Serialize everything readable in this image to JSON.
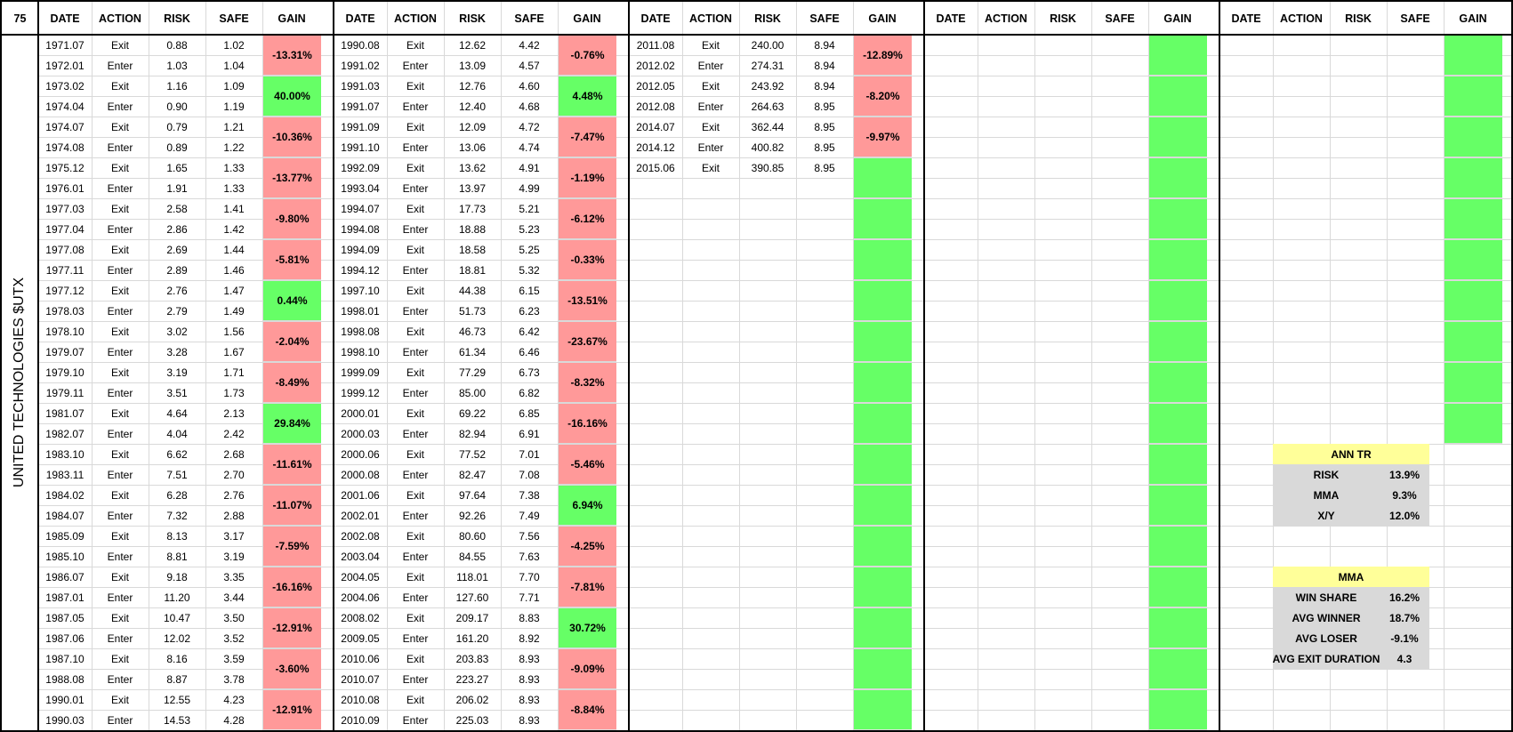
{
  "corner_label": "75",
  "company_label": "UNITED TECHNOLOGIES $UTX",
  "headers": [
    "DATE",
    "ACTION",
    "RISK",
    "SAFE",
    "GAIN"
  ],
  "colors": {
    "loss": "#ff9999",
    "gain": "#66ff66",
    "highlight": "#ffff99",
    "summary": "#d9d9d9",
    "grid": "#d9d9d9",
    "border": "#000000"
  },
  "blocks": [
    {
      "rows": [
        [
          "1971.07",
          "Exit",
          "0.88",
          "1.02"
        ],
        [
          "1972.01",
          "Enter",
          "1.03",
          "1.04"
        ],
        [
          "1973.02",
          "Exit",
          "1.16",
          "1.09"
        ],
        [
          "1974.04",
          "Enter",
          "0.90",
          "1.19"
        ],
        [
          "1974.07",
          "Exit",
          "0.79",
          "1.21"
        ],
        [
          "1974.08",
          "Enter",
          "0.89",
          "1.22"
        ],
        [
          "1975.12",
          "Exit",
          "1.65",
          "1.33"
        ],
        [
          "1976.01",
          "Enter",
          "1.91",
          "1.33"
        ],
        [
          "1977.03",
          "Exit",
          "2.58",
          "1.41"
        ],
        [
          "1977.04",
          "Enter",
          "2.86",
          "1.42"
        ],
        [
          "1977.08",
          "Exit",
          "2.69",
          "1.44"
        ],
        [
          "1977.11",
          "Enter",
          "2.89",
          "1.46"
        ],
        [
          "1977.12",
          "Exit",
          "2.76",
          "1.47"
        ],
        [
          "1978.03",
          "Enter",
          "2.79",
          "1.49"
        ],
        [
          "1978.10",
          "Exit",
          "3.02",
          "1.56"
        ],
        [
          "1979.07",
          "Enter",
          "3.28",
          "1.67"
        ],
        [
          "1979.10",
          "Exit",
          "3.19",
          "1.71"
        ],
        [
          "1979.11",
          "Enter",
          "3.51",
          "1.73"
        ],
        [
          "1981.07",
          "Exit",
          "4.64",
          "2.13"
        ],
        [
          "1982.07",
          "Enter",
          "4.04",
          "2.42"
        ],
        [
          "1983.10",
          "Exit",
          "6.62",
          "2.68"
        ],
        [
          "1983.11",
          "Enter",
          "7.51",
          "2.70"
        ],
        [
          "1984.02",
          "Exit",
          "6.28",
          "2.76"
        ],
        [
          "1984.07",
          "Enter",
          "7.32",
          "2.88"
        ],
        [
          "1985.09",
          "Exit",
          "8.13",
          "3.17"
        ],
        [
          "1985.10",
          "Enter",
          "8.81",
          "3.19"
        ],
        [
          "1986.07",
          "Exit",
          "9.18",
          "3.35"
        ],
        [
          "1987.01",
          "Enter",
          "11.20",
          "3.44"
        ],
        [
          "1987.05",
          "Exit",
          "10.47",
          "3.50"
        ],
        [
          "1987.06",
          "Enter",
          "12.02",
          "3.52"
        ],
        [
          "1987.10",
          "Exit",
          "8.16",
          "3.59"
        ],
        [
          "1988.08",
          "Enter",
          "8.87",
          "3.78"
        ],
        [
          "1990.01",
          "Exit",
          "12.55",
          "4.23"
        ],
        [
          "1990.03",
          "Enter",
          "14.53",
          "4.28"
        ]
      ],
      "gains": [
        {
          "text": "-13.31%",
          "type": "loss"
        },
        {
          "text": "40.00%",
          "type": "gain"
        },
        {
          "text": "-10.36%",
          "type": "loss"
        },
        {
          "text": "-13.77%",
          "type": "loss"
        },
        {
          "text": "-9.80%",
          "type": "loss"
        },
        {
          "text": "-5.81%",
          "type": "loss"
        },
        {
          "text": "0.44%",
          "type": "gain"
        },
        {
          "text": "-2.04%",
          "type": "loss"
        },
        {
          "text": "-8.49%",
          "type": "loss"
        },
        {
          "text": "29.84%",
          "type": "gain"
        },
        {
          "text": "-11.61%",
          "type": "loss"
        },
        {
          "text": "-11.07%",
          "type": "loss"
        },
        {
          "text": "-7.59%",
          "type": "loss"
        },
        {
          "text": "-16.16%",
          "type": "loss"
        },
        {
          "text": "-12.91%",
          "type": "loss"
        },
        {
          "text": "-3.60%",
          "type": "loss"
        },
        {
          "text": "-12.91%",
          "type": "loss"
        }
      ]
    },
    {
      "rows": [
        [
          "1990.08",
          "Exit",
          "12.62",
          "4.42"
        ],
        [
          "1991.02",
          "Enter",
          "13.09",
          "4.57"
        ],
        [
          "1991.03",
          "Exit",
          "12.76",
          "4.60"
        ],
        [
          "1991.07",
          "Enter",
          "12.40",
          "4.68"
        ],
        [
          "1991.09",
          "Exit",
          "12.09",
          "4.72"
        ],
        [
          "1991.10",
          "Enter",
          "13.06",
          "4.74"
        ],
        [
          "1992.09",
          "Exit",
          "13.62",
          "4.91"
        ],
        [
          "1993.04",
          "Enter",
          "13.97",
          "4.99"
        ],
        [
          "1994.07",
          "Exit",
          "17.73",
          "5.21"
        ],
        [
          "1994.08",
          "Enter",
          "18.88",
          "5.23"
        ],
        [
          "1994.09",
          "Exit",
          "18.58",
          "5.25"
        ],
        [
          "1994.12",
          "Enter",
          "18.81",
          "5.32"
        ],
        [
          "1997.10",
          "Exit",
          "44.38",
          "6.15"
        ],
        [
          "1998.01",
          "Enter",
          "51.73",
          "6.23"
        ],
        [
          "1998.08",
          "Exit",
          "46.73",
          "6.42"
        ],
        [
          "1998.10",
          "Enter",
          "61.34",
          "6.46"
        ],
        [
          "1999.09",
          "Exit",
          "77.29",
          "6.73"
        ],
        [
          "1999.12",
          "Enter",
          "85.00",
          "6.82"
        ],
        [
          "2000.01",
          "Exit",
          "69.22",
          "6.85"
        ],
        [
          "2000.03",
          "Enter",
          "82.94",
          "6.91"
        ],
        [
          "2000.06",
          "Exit",
          "77.52",
          "7.01"
        ],
        [
          "2000.08",
          "Enter",
          "82.47",
          "7.08"
        ],
        [
          "2001.06",
          "Exit",
          "97.64",
          "7.38"
        ],
        [
          "2002.01",
          "Enter",
          "92.26",
          "7.49"
        ],
        [
          "2002.08",
          "Exit",
          "80.60",
          "7.56"
        ],
        [
          "2003.04",
          "Enter",
          "84.55",
          "7.63"
        ],
        [
          "2004.05",
          "Exit",
          "118.01",
          "7.70"
        ],
        [
          "2004.06",
          "Enter",
          "127.60",
          "7.71"
        ],
        [
          "2008.02",
          "Exit",
          "209.17",
          "8.83"
        ],
        [
          "2009.05",
          "Enter",
          "161.20",
          "8.92"
        ],
        [
          "2010.06",
          "Exit",
          "203.83",
          "8.93"
        ],
        [
          "2010.07",
          "Enter",
          "223.27",
          "8.93"
        ],
        [
          "2010.08",
          "Exit",
          "206.02",
          "8.93"
        ],
        [
          "2010.09",
          "Enter",
          "225.03",
          "8.93"
        ]
      ],
      "gains": [
        {
          "text": "-0.76%",
          "type": "loss"
        },
        {
          "text": "4.48%",
          "type": "gain"
        },
        {
          "text": "-7.47%",
          "type": "loss"
        },
        {
          "text": "-1.19%",
          "type": "loss"
        },
        {
          "text": "-6.12%",
          "type": "loss"
        },
        {
          "text": "-0.33%",
          "type": "loss"
        },
        {
          "text": "-13.51%",
          "type": "loss"
        },
        {
          "text": "-23.67%",
          "type": "loss"
        },
        {
          "text": "-8.32%",
          "type": "loss"
        },
        {
          "text": "-16.16%",
          "type": "loss"
        },
        {
          "text": "-5.46%",
          "type": "loss"
        },
        {
          "text": "6.94%",
          "type": "gain"
        },
        {
          "text": "-4.25%",
          "type": "loss"
        },
        {
          "text": "-7.81%",
          "type": "loss"
        },
        {
          "text": "30.72%",
          "type": "gain"
        },
        {
          "text": "-9.09%",
          "type": "loss"
        },
        {
          "text": "-8.84%",
          "type": "loss"
        }
      ]
    },
    {
      "rows": [
        [
          "2011.08",
          "Exit",
          "240.00",
          "8.94"
        ],
        [
          "2012.02",
          "Enter",
          "274.31",
          "8.94"
        ],
        [
          "2012.05",
          "Exit",
          "243.92",
          "8.94"
        ],
        [
          "2012.08",
          "Enter",
          "264.63",
          "8.95"
        ],
        [
          "2014.07",
          "Exit",
          "362.44",
          "8.95"
        ],
        [
          "2014.12",
          "Enter",
          "400.82",
          "8.95"
        ],
        [
          "2015.06",
          "Exit",
          "390.85",
          "8.95"
        ]
      ],
      "gains": [
        {
          "text": "-12.89%",
          "type": "loss"
        },
        {
          "text": "-8.20%",
          "type": "loss"
        },
        {
          "text": "-9.97%",
          "type": "loss"
        },
        {
          "text": "",
          "type": "gain"
        },
        {
          "text": "",
          "type": "gain"
        },
        {
          "text": "",
          "type": "gain"
        },
        {
          "text": "",
          "type": "gain"
        },
        {
          "text": "",
          "type": "gain"
        },
        {
          "text": "",
          "type": "gain"
        },
        {
          "text": "",
          "type": "gain"
        },
        {
          "text": "",
          "type": "gain"
        },
        {
          "text": "",
          "type": "gain"
        },
        {
          "text": "",
          "type": "gain"
        },
        {
          "text": "",
          "type": "gain"
        },
        {
          "text": "",
          "type": "gain"
        },
        {
          "text": "",
          "type": "gain"
        },
        {
          "text": "",
          "type": "gain"
        }
      ]
    },
    {
      "rows": [],
      "gains": [
        {
          "text": "",
          "type": "gain"
        },
        {
          "text": "",
          "type": "gain"
        },
        {
          "text": "",
          "type": "gain"
        },
        {
          "text": "",
          "type": "gain"
        },
        {
          "text": "",
          "type": "gain"
        },
        {
          "text": "",
          "type": "gain"
        },
        {
          "text": "",
          "type": "gain"
        },
        {
          "text": "",
          "type": "gain"
        },
        {
          "text": "",
          "type": "gain"
        },
        {
          "text": "",
          "type": "gain"
        },
        {
          "text": "",
          "type": "gain"
        },
        {
          "text": "",
          "type": "gain"
        },
        {
          "text": "",
          "type": "gain"
        },
        {
          "text": "",
          "type": "gain"
        },
        {
          "text": "",
          "type": "gain"
        },
        {
          "text": "",
          "type": "gain"
        },
        {
          "text": "",
          "type": "gain"
        }
      ]
    },
    {
      "rows": [],
      "gains": [
        {
          "text": "",
          "type": "gain"
        },
        {
          "text": "",
          "type": "gain"
        },
        {
          "text": "",
          "type": "gain"
        },
        {
          "text": "",
          "type": "gain"
        },
        {
          "text": "",
          "type": "gain"
        },
        {
          "text": "",
          "type": "gain"
        },
        {
          "text": "",
          "type": "gain"
        },
        {
          "text": "",
          "type": "gain"
        },
        {
          "text": "",
          "type": "gain"
        },
        {
          "text": "",
          "type": "gain"
        }
      ]
    }
  ],
  "summary": {
    "ann_tr": {
      "title": "ANN TR",
      "rows": [
        [
          "RISK",
          "13.9%"
        ],
        [
          "MMA",
          "9.3%"
        ],
        [
          "X/Y",
          "12.0%"
        ]
      ]
    },
    "mma": {
      "title": "MMA",
      "rows": [
        [
          "WIN SHARE",
          "16.2%"
        ],
        [
          "AVG WINNER",
          "18.7%"
        ],
        [
          "AVG LOSER",
          "-9.1%"
        ],
        [
          "AVG EXIT DURATION",
          "4.3"
        ]
      ]
    }
  }
}
